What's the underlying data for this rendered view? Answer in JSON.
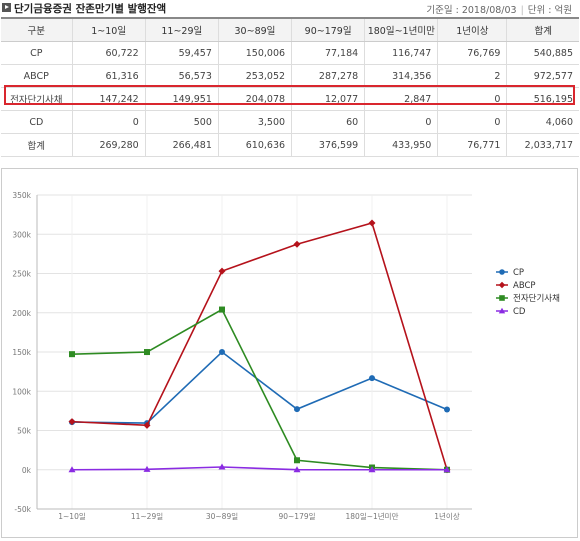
{
  "header": {
    "title": "단기금융증권 잔존만기별 발행잔액",
    "date_label": "기준일 : 2018/08/03",
    "unit_label": "단위 : 억원"
  },
  "table": {
    "columns": [
      "구분",
      "1~10일",
      "11~29일",
      "30~89일",
      "90~179일",
      "180일~1년미만",
      "1년이상",
      "합계"
    ],
    "rows": [
      {
        "label": "CP",
        "values": [
          "60,722",
          "59,457",
          "150,006",
          "77,184",
          "116,747",
          "76,769",
          "540,885"
        ]
      },
      {
        "label": "ABCP",
        "values": [
          "61,316",
          "56,573",
          "253,052",
          "287,278",
          "314,356",
          "2",
          "972,577"
        ]
      },
      {
        "label": "전자단기사채",
        "values": [
          "147,242",
          "149,951",
          "204,078",
          "12,077",
          "2,847",
          "0",
          "516,195"
        ]
      },
      {
        "label": "CD",
        "values": [
          "0",
          "500",
          "3,500",
          "60",
          "0",
          "0",
          "4,060"
        ]
      },
      {
        "label": "합계",
        "values": [
          "269,280",
          "266,481",
          "610,636",
          "376,599",
          "433,950",
          "76,771",
          "2,033,717"
        ]
      }
    ]
  },
  "chart_data": {
    "type": "line",
    "categories": [
      "1~10일",
      "11~29일",
      "30~89일",
      "90~179일",
      "180일~1년미만",
      "1년이상"
    ],
    "series": [
      {
        "name": "CP",
        "color": "#1f6bb5",
        "marker": "circle",
        "values": [
          60722,
          59457,
          150006,
          77184,
          116747,
          76769
        ]
      },
      {
        "name": "ABCP",
        "color": "#b5121b",
        "marker": "diamond",
        "values": [
          61316,
          56573,
          253052,
          287278,
          314356,
          2
        ]
      },
      {
        "name": "전자단기사채",
        "color": "#2e8b22",
        "marker": "square",
        "values": [
          147242,
          149951,
          204078,
          12077,
          2847,
          0
        ]
      },
      {
        "name": "CD",
        "color": "#8a2be2",
        "marker": "triangle",
        "values": [
          0,
          500,
          3500,
          60,
          0,
          0
        ]
      }
    ],
    "ylim": [
      -50000,
      350000
    ],
    "y_ticks": [
      -50000,
      0,
      50000,
      100000,
      150000,
      200000,
      250000,
      300000,
      350000
    ],
    "y_tick_labels": [
      "-50k",
      "0k",
      "50k",
      "100k",
      "150k",
      "200k",
      "250k",
      "300k",
      "350k"
    ],
    "grid": true,
    "legend": "right"
  }
}
